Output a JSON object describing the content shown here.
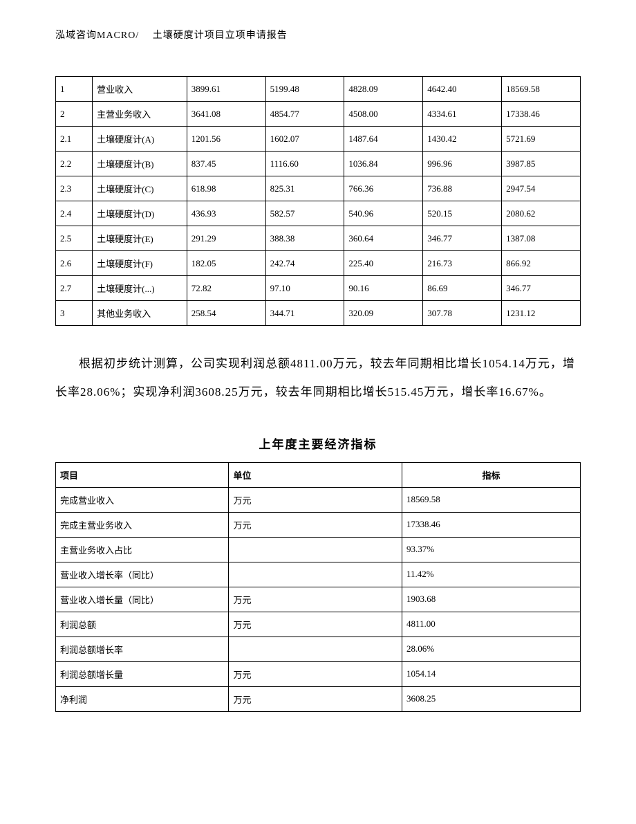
{
  "header": "泓域咨询MACRO/　 土壤硬度计项目立项申请报告",
  "table1": {
    "rows": [
      [
        "1",
        "营业收入",
        "3899.61",
        "5199.48",
        "4828.09",
        "4642.40",
        "18569.58"
      ],
      [
        "2",
        "主营业务收入",
        "3641.08",
        "4854.77",
        "4508.00",
        "4334.61",
        "17338.46"
      ],
      [
        "2.1",
        "土壤硬度计(A)",
        "1201.56",
        "1602.07",
        "1487.64",
        "1430.42",
        "5721.69"
      ],
      [
        "2.2",
        "土壤硬度计(B)",
        "837.45",
        "1116.60",
        "1036.84",
        "996.96",
        "3987.85"
      ],
      [
        "2.3",
        "土壤硬度计(C)",
        "618.98",
        "825.31",
        "766.36",
        "736.88",
        "2947.54"
      ],
      [
        "2.4",
        "土壤硬度计(D)",
        "436.93",
        "582.57",
        "540.96",
        "520.15",
        "2080.62"
      ],
      [
        "2.5",
        "土壤硬度计(E)",
        "291.29",
        "388.38",
        "360.64",
        "346.77",
        "1387.08"
      ],
      [
        "2.6",
        "土壤硬度计(F)",
        "182.05",
        "242.74",
        "225.40",
        "216.73",
        "866.92"
      ],
      [
        "2.7",
        "土壤硬度计(...)",
        "72.82",
        "97.10",
        "90.16",
        "86.69",
        "346.77"
      ],
      [
        "3",
        "其他业务收入",
        "258.54",
        "344.71",
        "320.09",
        "307.78",
        "1231.12"
      ]
    ]
  },
  "paragraph": "根据初步统计测算，公司实现利润总额4811.00万元，较去年同期相比增长1054.14万元，增长率28.06%；实现净利润3608.25万元，较去年同期相比增长515.45万元，增长率16.67%。",
  "section_title": "上年度主要经济指标",
  "table2": {
    "headers": [
      "项目",
      "单位",
      "指标"
    ],
    "rows": [
      [
        "完成营业收入",
        "万元",
        "18569.58"
      ],
      [
        "完成主营业务收入",
        "万元",
        "17338.46"
      ],
      [
        "主营业务收入占比",
        "",
        "93.37%"
      ],
      [
        "营业收入增长率（同比）",
        "",
        "11.42%"
      ],
      [
        "营业收入增长量（同比）",
        "万元",
        "1903.68"
      ],
      [
        "利润总额",
        "万元",
        "4811.00"
      ],
      [
        "利润总额增长率",
        "",
        "28.06%"
      ],
      [
        "利润总额增长量",
        "万元",
        "1054.14"
      ],
      [
        "净利润",
        "万元",
        "3608.25"
      ]
    ]
  }
}
